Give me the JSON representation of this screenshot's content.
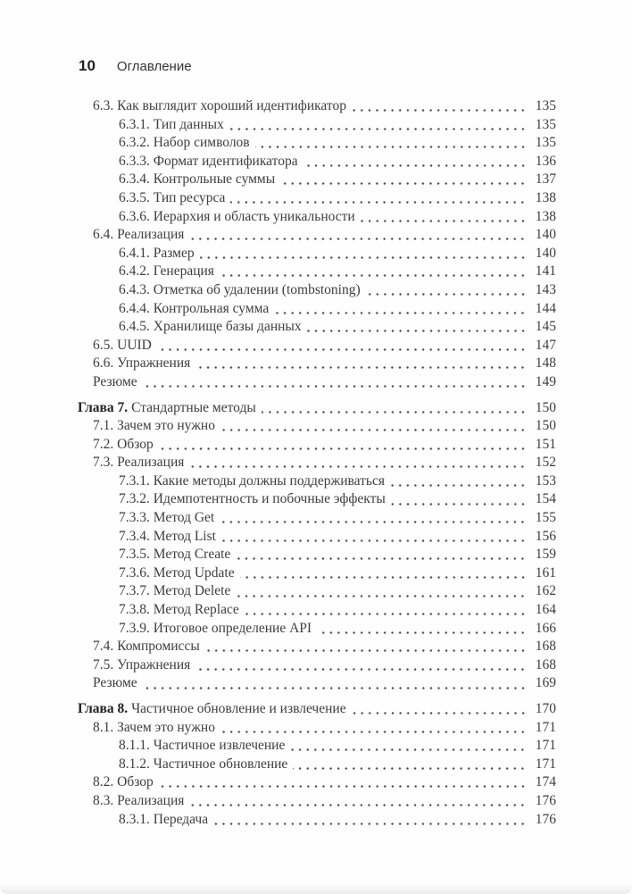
{
  "header": {
    "page_number": "10",
    "title": "Оглавление"
  },
  "toc": {
    "entries": [
      {
        "level": "l1",
        "title": "6.3. Как выглядит хороший идентификатор",
        "page": "135"
      },
      {
        "level": "l2",
        "title": "6.3.1. Тип данных",
        "page": "135"
      },
      {
        "level": "l2",
        "title": "6.3.2. Набор символов",
        "page": "135"
      },
      {
        "level": "l2",
        "title": "6.3.3. Формат идентификатора",
        "page": "136"
      },
      {
        "level": "l2",
        "title": "6.3.4. Контрольные суммы",
        "page": "137"
      },
      {
        "level": "l2",
        "title": "6.3.5. Тип ресурса",
        "page": "138"
      },
      {
        "level": "l2",
        "title": "6.3.6. Иерархия и область уникальности",
        "page": "138"
      },
      {
        "level": "l1",
        "title": "6.4. Реализация",
        "page": "140"
      },
      {
        "level": "l2",
        "title": "6.4.1. Размер",
        "page": "140"
      },
      {
        "level": "l2",
        "title": "6.4.2. Генерация",
        "page": "141"
      },
      {
        "level": "l2",
        "title": "6.4.3. Отметка об удалении (tombstoning)",
        "page": "143"
      },
      {
        "level": "l2",
        "title": "6.4.4. Контрольная сумма",
        "page": "144"
      },
      {
        "level": "l2",
        "title": "6.4.5. Хранилище базы данных",
        "page": "145"
      },
      {
        "level": "l1",
        "title": "6.5. UUID",
        "page": "147"
      },
      {
        "level": "l1",
        "title": "6.6. Упражнения",
        "page": "148"
      },
      {
        "level": "l1",
        "title": "Резюме",
        "page": "149"
      },
      {
        "level": "chapter",
        "bold": "Глава 7.",
        "title": "Стандартные методы",
        "page": "150"
      },
      {
        "level": "l1",
        "title": "7.1. Зачем это нужно",
        "page": "150"
      },
      {
        "level": "l1",
        "title": "7.2. Обзор",
        "page": "151"
      },
      {
        "level": "l1",
        "title": "7.3. Реализация",
        "page": "152"
      },
      {
        "level": "l2",
        "title": "7.3.1. Какие методы должны поддерживаться",
        "page": "153"
      },
      {
        "level": "l2",
        "title": "7.3.2. Идемпотентность и побочные эффекты",
        "page": "154"
      },
      {
        "level": "l2",
        "title": "7.3.3. Метод Get",
        "page": "155"
      },
      {
        "level": "l2",
        "title": "7.3.4. Метод List",
        "page": "156"
      },
      {
        "level": "l2",
        "title": "7.3.5. Метод Create",
        "page": "159"
      },
      {
        "level": "l2",
        "title": "7.3.6. Метод Update",
        "page": "161"
      },
      {
        "level": "l2",
        "title": "7.3.7. Метод Delete",
        "page": "162"
      },
      {
        "level": "l2",
        "title": "7.3.8. Метод Replace",
        "page": "164"
      },
      {
        "level": "l2",
        "title": "7.3.9. Итоговое определение API",
        "page": "166"
      },
      {
        "level": "l1",
        "title": "7.4. Компромиссы",
        "page": "168"
      },
      {
        "level": "l1",
        "title": "7.5. Упражнения",
        "page": "168"
      },
      {
        "level": "l1",
        "title": "Резюме",
        "page": "169"
      },
      {
        "level": "chapter",
        "bold": "Глава 8.",
        "title": "Частичное обновление и извлечение",
        "page": "170"
      },
      {
        "level": "l1",
        "title": "8.1. Зачем это нужно",
        "page": "171"
      },
      {
        "level": "l2",
        "title": "8.1.1. Частичное извлечение",
        "page": "171"
      },
      {
        "level": "l2",
        "title": "8.1.2. Частичное обновление",
        "page": "171"
      },
      {
        "level": "l1",
        "title": "8.2. Обзор",
        "page": "174"
      },
      {
        "level": "l1",
        "title": "8.3. Реализация",
        "page": "176"
      },
      {
        "level": "l2",
        "title": "8.3.1. Передача",
        "page": "176"
      }
    ]
  }
}
